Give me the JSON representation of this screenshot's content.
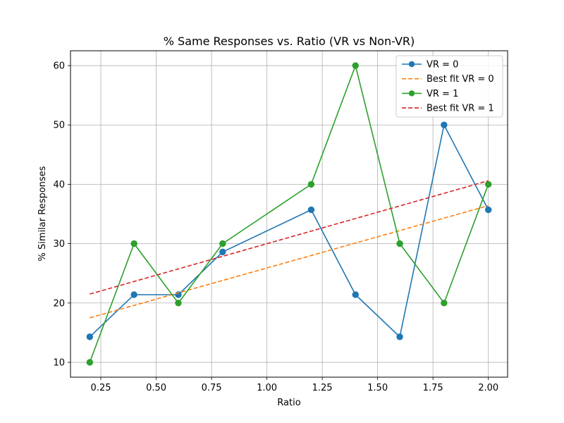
{
  "chart_data": {
    "type": "line",
    "title": "% Same Responses vs. Ratio (VR vs Non-VR)",
    "xlabel": "Ratio",
    "ylabel": "% Similar Responses",
    "xlim": [
      0.113,
      2.087
    ],
    "ylim": [
      7.5,
      62.5
    ],
    "xticks": [
      0.25,
      0.5,
      0.75,
      1.0,
      1.25,
      1.5,
      1.75,
      2.0
    ],
    "xtick_labels": [
      "0.25",
      "0.50",
      "0.75",
      "1.00",
      "1.25",
      "1.50",
      "1.75",
      "2.00"
    ],
    "yticks": [
      10,
      20,
      30,
      40,
      50,
      60
    ],
    "ytick_labels": [
      "10",
      "20",
      "30",
      "40",
      "50",
      "60"
    ],
    "grid": true,
    "legend_position": "top-right",
    "series": [
      {
        "name": "VR = 0",
        "kind": "line-marker",
        "color": "#1f77b4",
        "x": [
          0.2,
          0.4,
          0.6,
          0.8,
          1.2,
          1.4,
          1.6,
          1.8,
          2.0
        ],
        "y": [
          14.3,
          21.4,
          21.4,
          28.6,
          35.7,
          21.4,
          14.3,
          50.0,
          35.7
        ]
      },
      {
        "name": "Best fit VR = 0",
        "kind": "dashed",
        "color": "#ff7f0e",
        "x": [
          0.2,
          2.0
        ],
        "y": [
          17.5,
          36.4
        ]
      },
      {
        "name": "VR = 1",
        "kind": "line-marker",
        "color": "#2ca02c",
        "x": [
          0.2,
          0.4,
          0.6,
          0.8,
          1.2,
          1.4,
          1.6,
          1.8,
          2.0
        ],
        "y": [
          10,
          30,
          20,
          30,
          40,
          60,
          30,
          20,
          40
        ]
      },
      {
        "name": "Best fit VR = 1",
        "kind": "dashed",
        "color": "#d62728",
        "x": [
          0.2,
          2.0
        ],
        "y": [
          21.5,
          40.6
        ]
      }
    ]
  }
}
